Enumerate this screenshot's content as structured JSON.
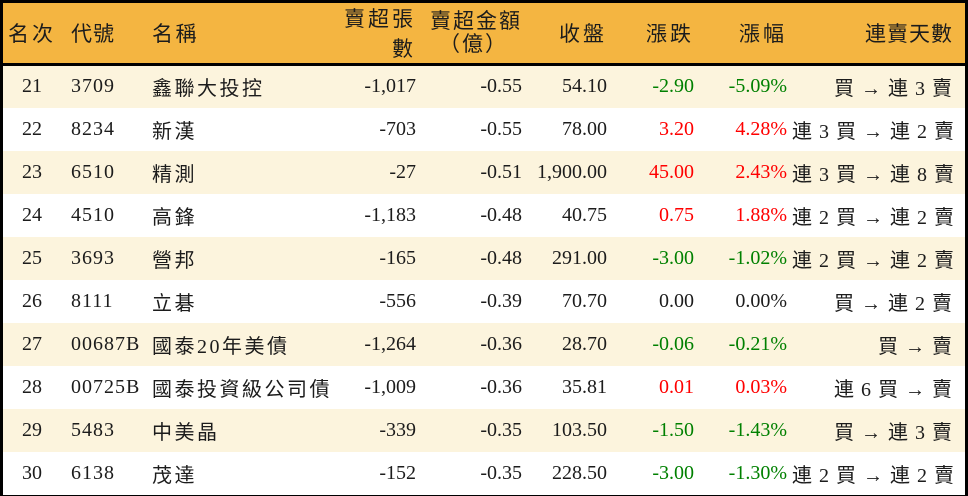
{
  "chart_data": {
    "type": "table",
    "columns": [
      {
        "key": "rank",
        "label": "名次"
      },
      {
        "key": "code",
        "label": "代號"
      },
      {
        "key": "name",
        "label": "名稱"
      },
      {
        "key": "volume",
        "label": "賣超張數"
      },
      {
        "key": "amount",
        "label": "賣超金額",
        "label2": "（億）"
      },
      {
        "key": "close",
        "label": "收盤"
      },
      {
        "key": "change",
        "label": "漲跌"
      },
      {
        "key": "pct",
        "label": "漲幅"
      },
      {
        "key": "days",
        "label": "連賣天數"
      }
    ],
    "rows": [
      {
        "rank": "21",
        "code": "3709",
        "name": "鑫聯大投控",
        "volume": "-1,017",
        "amount": "-0.55",
        "close": "54.10",
        "change": "-2.90",
        "pct": "-5.09%",
        "days": "買 → 連 3 賣",
        "trend": "down"
      },
      {
        "rank": "22",
        "code": "8234",
        "name": "新漢",
        "volume": "-703",
        "amount": "-0.55",
        "close": "78.00",
        "change": "3.20",
        "pct": "4.28%",
        "days": "連 3 買 → 連 2 賣",
        "trend": "up"
      },
      {
        "rank": "23",
        "code": "6510",
        "name": "精測",
        "volume": "-27",
        "amount": "-0.51",
        "close": "1,900.00",
        "change": "45.00",
        "pct": "2.43%",
        "days": "連 3 買 → 連 8 賣",
        "trend": "up"
      },
      {
        "rank": "24",
        "code": "4510",
        "name": "高鋒",
        "volume": "-1,183",
        "amount": "-0.48",
        "close": "40.75",
        "change": "0.75",
        "pct": "1.88%",
        "days": "連 2 買 → 連 2 賣",
        "trend": "up"
      },
      {
        "rank": "25",
        "code": "3693",
        "name": "營邦",
        "volume": "-165",
        "amount": "-0.48",
        "close": "291.00",
        "change": "-3.00",
        "pct": "-1.02%",
        "days": "連 2 買 → 連 2 賣",
        "trend": "down"
      },
      {
        "rank": "26",
        "code": "8111",
        "name": "立碁",
        "volume": "-556",
        "amount": "-0.39",
        "close": "70.70",
        "change": "0.00",
        "pct": "0.00%",
        "days": "買 → 連 2 賣",
        "trend": "flat"
      },
      {
        "rank": "27",
        "code": "00687B",
        "name": "國泰20年美債",
        "volume": "-1,264",
        "amount": "-0.36",
        "close": "28.70",
        "change": "-0.06",
        "pct": "-0.21%",
        "days": "買 → 賣",
        "trend": "down"
      },
      {
        "rank": "28",
        "code": "00725B",
        "name": "國泰投資級公司債",
        "volume": "-1,009",
        "amount": "-0.36",
        "close": "35.81",
        "change": "0.01",
        "pct": "0.03%",
        "days": "連 6 買 → 賣",
        "trend": "up"
      },
      {
        "rank": "29",
        "code": "5483",
        "name": "中美晶",
        "volume": "-339",
        "amount": "-0.35",
        "close": "103.50",
        "change": "-1.50",
        "pct": "-1.43%",
        "days": "買 → 連 3 賣",
        "trend": "down"
      },
      {
        "rank": "30",
        "code": "6138",
        "name": "茂達",
        "volume": "-152",
        "amount": "-0.35",
        "close": "228.50",
        "change": "-3.00",
        "pct": "-1.30%",
        "days": "連 2 買 → 連 2 賣",
        "trend": "down"
      }
    ]
  },
  "colors": {
    "header_bg": "#F4B541",
    "row_alt_bg": "#FCF4DD",
    "row_bg": "#FFFFFF",
    "up": "#FF0000",
    "down": "#008000",
    "border": "#000000"
  }
}
